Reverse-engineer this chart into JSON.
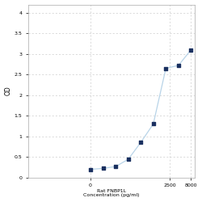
{
  "x": [
    31.25,
    62.5,
    125,
    250,
    500,
    1000,
    2000,
    4000,
    8000
  ],
  "y": [
    0.197,
    0.22,
    0.265,
    0.44,
    0.85,
    1.3,
    2.65,
    2.72,
    3.1
  ],
  "xlabel_line1": "Rat FNBP1L",
  "xlabel_line2": "Concentration (pg/ml)",
  "ylabel": "OD",
  "xlim_log": [
    1,
    10000
  ],
  "ylim": [
    0,
    4.2
  ],
  "yticks": [
    0,
    0.5,
    1.0,
    1.5,
    2.0,
    2.5,
    3.0,
    3.5,
    4.0
  ],
  "ytick_labels": [
    "0",
    "0.5",
    "1",
    "1.5",
    "2",
    "2.5",
    "3",
    "3.5",
    "4"
  ],
  "xtick_positions": [
    31.25,
    2500,
    8000
  ],
  "xtick_labels": [
    "0",
    "2500",
    "8000"
  ],
  "line_color": "#b8d4e8",
  "marker_color": "#1a3060",
  "background_color": "#ffffff",
  "grid_color": "#cccccc",
  "figsize": [
    2.5,
    2.5
  ],
  "dpi": 100
}
